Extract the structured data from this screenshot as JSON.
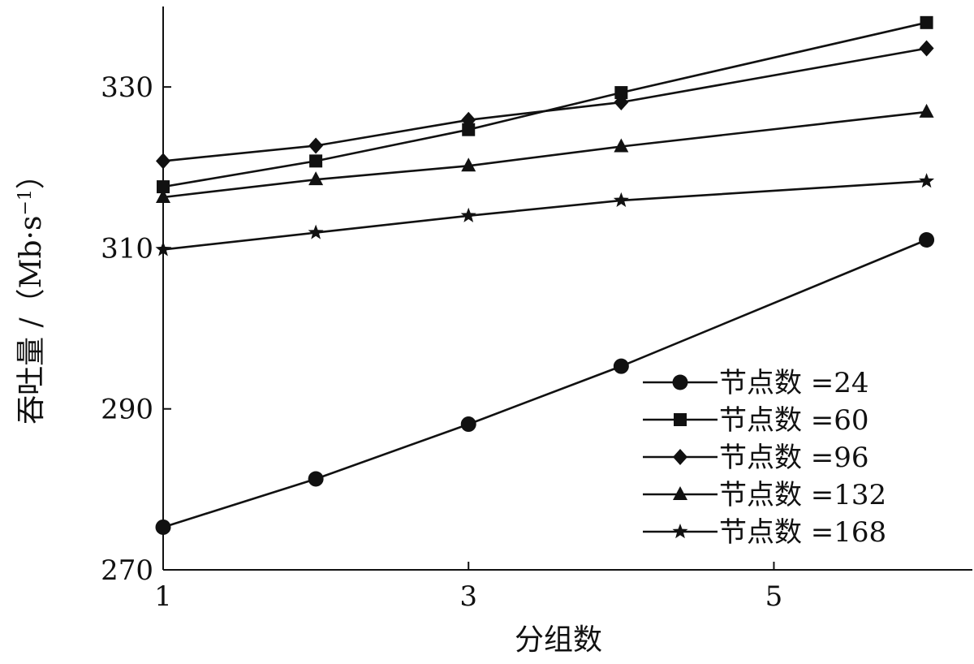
{
  "chart_data": {
    "type": "line",
    "xlabel": "分组数",
    "ylabel": "吞吐量 /（Mb·s",
    "ylabel_superscript": "−1",
    "ylabel_close": "）",
    "x": [
      1,
      2,
      3,
      4,
      6
    ],
    "xlim": [
      1,
      6.3
    ],
    "ylim": [
      270,
      340
    ],
    "x_ticks": [
      1,
      3,
      5
    ],
    "y_ticks": [
      270,
      290,
      310,
      330
    ],
    "grid": false,
    "legend_position": "bottom-right",
    "series": [
      {
        "name": "节点数 =24",
        "marker": "circle",
        "values": [
          275.3,
          281.3,
          288.1,
          295.3,
          311.0
        ]
      },
      {
        "name": "节点数 =60",
        "marker": "square",
        "values": [
          317.6,
          320.8,
          324.7,
          329.3,
          338.0
        ]
      },
      {
        "name": "节点数 =96",
        "marker": "diamond",
        "values": [
          320.8,
          322.7,
          325.9,
          328.1,
          334.8
        ]
      },
      {
        "name": "节点数 =132",
        "marker": "triangle",
        "values": [
          316.3,
          318.5,
          320.2,
          322.6,
          326.9
        ]
      },
      {
        "name": "节点数 =168",
        "marker": "star",
        "values": [
          309.8,
          311.9,
          314.0,
          315.9,
          318.3
        ]
      }
    ]
  }
}
